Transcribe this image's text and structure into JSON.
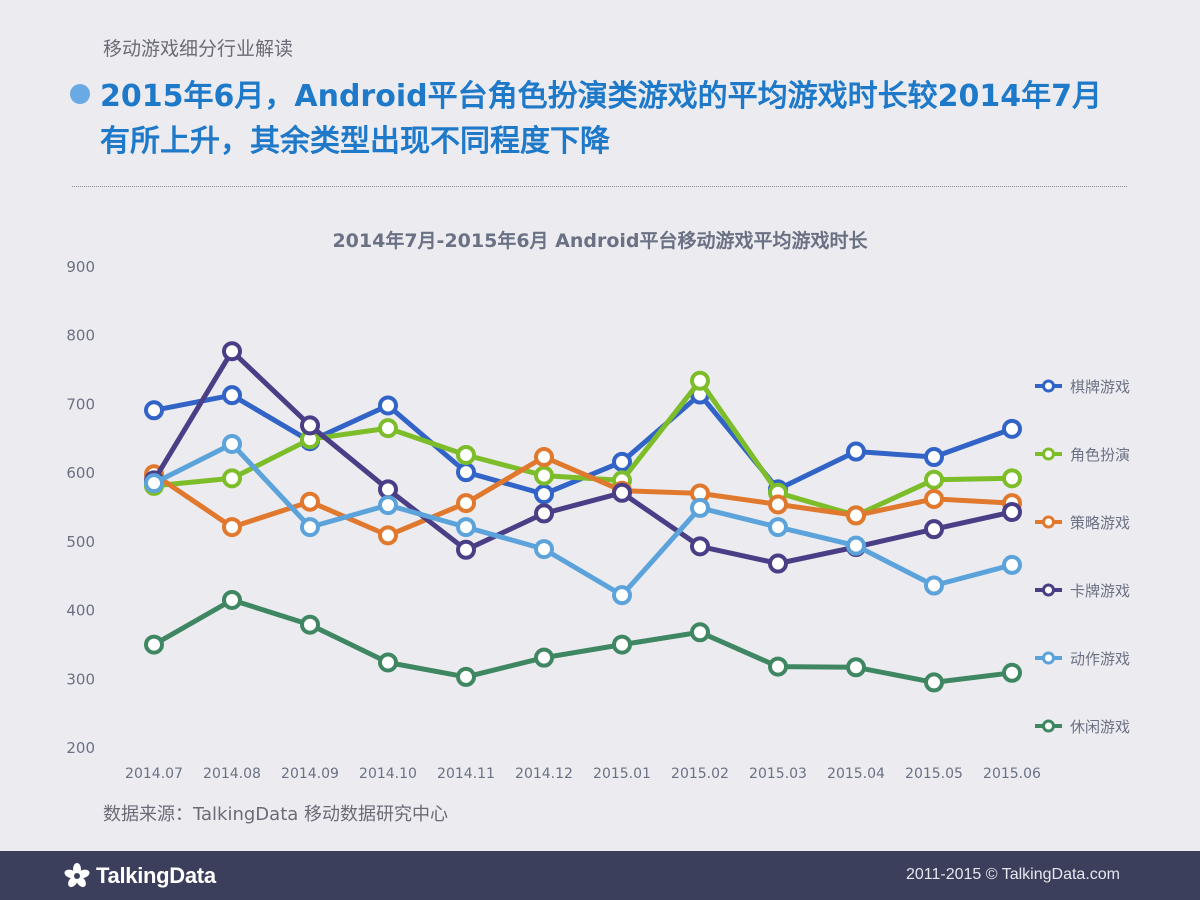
{
  "header": {
    "section_label": "移动游戏细分行业解读",
    "headline": "2015年6月，Android平台角色扮演类游戏的平均游戏时长较2014年7月有所上升，其余类型出现不同程度下降"
  },
  "chart_data": {
    "type": "line",
    "title": "2014年7月-2015年6月 Android平台移动游戏平均游戏时长",
    "xlabel": "",
    "ylabel": "",
    "ylim": [
      200,
      900
    ],
    "yticks": [
      900,
      800,
      700,
      600,
      500,
      400,
      300,
      200
    ],
    "categories": [
      "2014.07",
      "2014.08",
      "2014.09",
      "2014.10",
      "2014.11",
      "2014.12",
      "2015.01",
      "2015.02",
      "2015.03",
      "2015.04",
      "2015.05",
      "2015.06"
    ],
    "grid": false,
    "legend_position": "right",
    "series": [
      {
        "name": "棋牌游戏",
        "color": "#3264c8",
        "values": [
          690,
          712,
          645,
          697,
          600,
          568,
          615,
          713,
          575,
          630,
          622,
          663
        ]
      },
      {
        "name": "角色扮演",
        "color": "#7dbd2a",
        "values": [
          580,
          591,
          648,
          664,
          625,
          595,
          588,
          733,
          570,
          537,
          589,
          591
        ]
      },
      {
        "name": "策略游戏",
        "color": "#e0792e",
        "values": [
          597,
          520,
          557,
          508,
          555,
          622,
          573,
          569,
          553,
          537,
          561,
          555
        ]
      },
      {
        "name": "卡牌游戏",
        "color": "#4a3f86",
        "values": [
          588,
          776,
          668,
          575,
          487,
          540,
          570,
          492,
          467,
          491,
          517,
          542
        ]
      },
      {
        "name": "动作游戏",
        "color": "#5ba3da",
        "values": [
          584,
          641,
          520,
          552,
          520,
          488,
          421,
          548,
          520,
          493,
          435,
          465
        ]
      },
      {
        "name": "休闲游戏",
        "color": "#3f8762",
        "values": [
          349,
          414,
          378,
          323,
          302,
          330,
          349,
          367,
          317,
          316,
          294,
          308
        ]
      }
    ]
  },
  "source": "数据来源：TalkingData 移动数据研究中心",
  "footer": {
    "logo_text": "TalkingData",
    "copyright": "2011-2015 © TalkingData.com"
  }
}
